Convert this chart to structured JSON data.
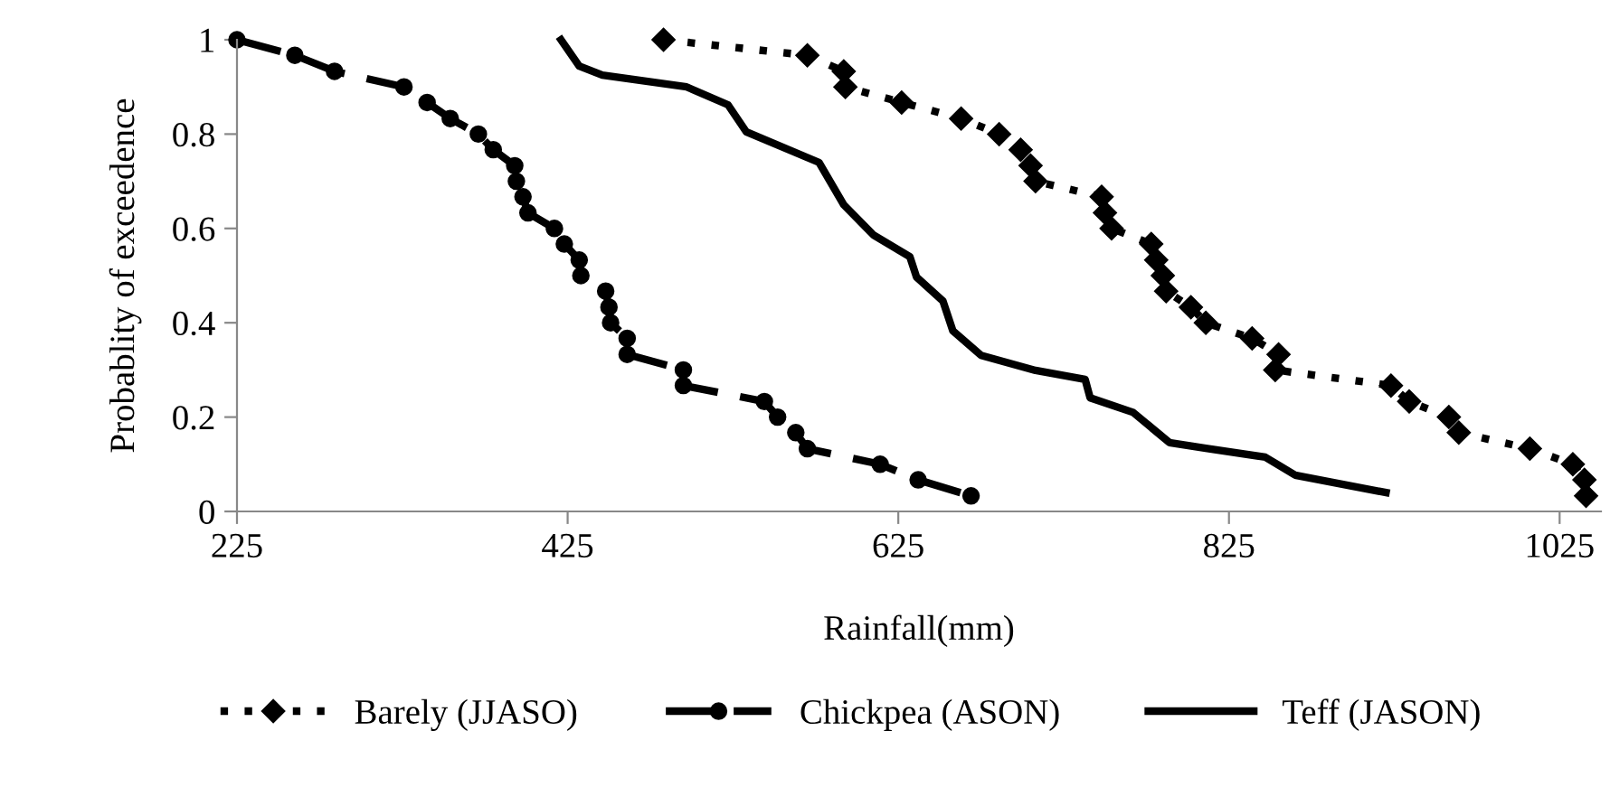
{
  "chart_data": {
    "type": "line",
    "xlabel": "Rainfall(mm)",
    "ylabel": "Probablity of exceedence",
    "xlim": [
      225,
      1050
    ],
    "xticks": [
      225,
      425,
      625,
      825,
      1025
    ],
    "ylim": [
      0,
      1
    ],
    "yticks": [
      0,
      0.2,
      0.4,
      0.6,
      0.8,
      1
    ],
    "grid": false,
    "legend": "bottom",
    "series": [
      {
        "name": "Barely (JJASO)",
        "color": "#000000",
        "marker": "diamond",
        "line_style": "dotted",
        "x": [
          483,
          570,
          592,
          593,
          627,
          663,
          686,
          699,
          705,
          708,
          748,
          750,
          754,
          778,
          781,
          785,
          787,
          802,
          811,
          839,
          855,
          853,
          923,
          934,
          958,
          964,
          1007,
          1033,
          1040,
          1041
        ],
        "values": [
          1.0,
          0.967,
          0.933,
          0.9,
          0.867,
          0.833,
          0.8,
          0.767,
          0.733,
          0.7,
          0.667,
          0.633,
          0.6,
          0.567,
          0.533,
          0.5,
          0.467,
          0.433,
          0.4,
          0.367,
          0.333,
          0.3,
          0.267,
          0.233,
          0.2,
          0.167,
          0.133,
          0.1,
          0.067,
          0.033
        ]
      },
      {
        "name": "Chickpea (ASON)",
        "color": "#000000",
        "marker": "circle",
        "line_style": "dashed",
        "x": [
          225,
          260,
          284,
          326,
          340,
          354,
          371,
          380,
          393,
          394,
          398,
          401,
          417,
          423,
          432,
          433,
          448,
          450,
          451,
          461,
          461,
          495,
          495,
          544,
          552,
          563,
          570,
          614,
          637,
          669
        ],
        "values": [
          1.0,
          0.967,
          0.933,
          0.9,
          0.867,
          0.833,
          0.8,
          0.767,
          0.733,
          0.7,
          0.667,
          0.633,
          0.6,
          0.567,
          0.533,
          0.5,
          0.467,
          0.433,
          0.4,
          0.367,
          0.333,
          0.3,
          0.267,
          0.233,
          0.2,
          0.167,
          0.133,
          0.1,
          0.067,
          0.033
        ]
      },
      {
        "name": "Teff (JASON)",
        "color": "#000000",
        "marker": "none",
        "line_style": "solid",
        "x": [
          421,
          432,
          446,
          497,
          522,
          533,
          577,
          592,
          610,
          632,
          636,
          652,
          658,
          675,
          708,
          738,
          741,
          767,
          789,
          811,
          847,
          865,
          920
        ],
        "values": [
          1.0,
          0.944,
          0.925,
          0.9,
          0.862,
          0.805,
          0.74,
          0.65,
          0.586,
          0.54,
          0.497,
          0.446,
          0.383,
          0.331,
          0.299,
          0.28,
          0.241,
          0.21,
          0.146,
          0.134,
          0.115,
          0.077,
          0.04
        ]
      }
    ]
  }
}
